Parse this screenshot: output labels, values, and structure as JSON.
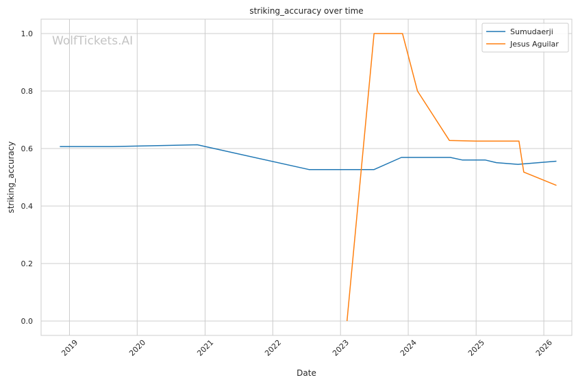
{
  "watermark": "WolfTickets.AI",
  "chart_data": {
    "type": "line",
    "title": "striking_accuracy over time",
    "xlabel": "Date",
    "ylabel": "striking_accuracy",
    "x_type": "date",
    "xlim": [
      "2018-08-01",
      "2026-06-01"
    ],
    "ylim": [
      -0.05,
      1.05
    ],
    "x_ticks": [
      "2019-01-01",
      "2020-01-01",
      "2021-01-01",
      "2022-01-01",
      "2023-01-01",
      "2024-01-01",
      "2025-01-01",
      "2026-01-01"
    ],
    "x_tick_labels": [
      "2019",
      "2020",
      "2021",
      "2022",
      "2023",
      "2024",
      "2025",
      "2026"
    ],
    "y_ticks": [
      0.0,
      0.2,
      0.4,
      0.6,
      0.8,
      1.0
    ],
    "y_tick_labels": [
      "0.0",
      "0.2",
      "0.4",
      "0.6",
      "0.8",
      "1.0"
    ],
    "grid": true,
    "legend_position": "top-right",
    "series": [
      {
        "name": "Sumudaerji",
        "color": "#1f77b4",
        "points": [
          {
            "x": "2018-11-10",
            "y": 0.607
          },
          {
            "x": "2019-08-20",
            "y": 0.607
          },
          {
            "x": "2020-11-20",
            "y": 0.613
          },
          {
            "x": "2022-07-15",
            "y": 0.527
          },
          {
            "x": "2023-07-01",
            "y": 0.527
          },
          {
            "x": "2023-11-25",
            "y": 0.569
          },
          {
            "x": "2024-08-15",
            "y": 0.569
          },
          {
            "x": "2024-10-20",
            "y": 0.56
          },
          {
            "x": "2025-02-20",
            "y": 0.56
          },
          {
            "x": "2025-04-20",
            "y": 0.551
          },
          {
            "x": "2025-08-15",
            "y": 0.545
          },
          {
            "x": "2026-03-10",
            "y": 0.556
          }
        ]
      },
      {
        "name": "Jesus Aguilar",
        "color": "#ff7f0e",
        "points": [
          {
            "x": "2023-02-05",
            "y": 0.0
          },
          {
            "x": "2023-07-01",
            "y": 1.0
          },
          {
            "x": "2023-12-01",
            "y": 1.0
          },
          {
            "x": "2024-02-20",
            "y": 0.8
          },
          {
            "x": "2024-08-10",
            "y": 0.628
          },
          {
            "x": "2025-01-01",
            "y": 0.626
          },
          {
            "x": "2025-08-20",
            "y": 0.626
          },
          {
            "x": "2025-09-15",
            "y": 0.518
          },
          {
            "x": "2026-03-10",
            "y": 0.472
          }
        ]
      }
    ]
  }
}
